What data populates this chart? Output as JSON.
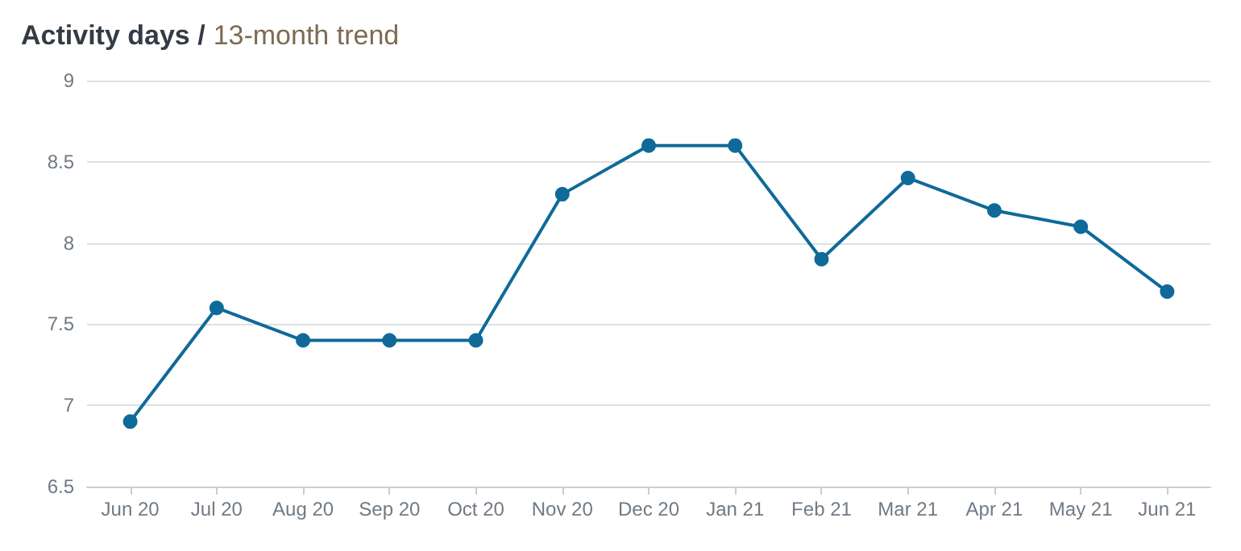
{
  "chart_data": {
    "type": "line",
    "title": "Activity days /",
    "subtitle": "13-month trend",
    "categories": [
      "Jun 20",
      "Jul 20",
      "Aug 20",
      "Sep 20",
      "Oct 20",
      "Nov 20",
      "Dec 20",
      "Jan 21",
      "Feb 21",
      "Mar 21",
      "Apr 21",
      "May 21",
      "Jun 21"
    ],
    "series": [
      {
        "color": "#0f6a99",
        "values": [
          6.9,
          7.6,
          7.4,
          7.4,
          7.4,
          8.3,
          8.6,
          8.6,
          7.9,
          8.4,
          8.2,
          8.1,
          7.7
        ]
      }
    ],
    "ylim": [
      6.5,
      9
    ],
    "yticks": [
      6.5,
      7,
      7.5,
      8,
      8.5,
      9
    ],
    "grid": "y",
    "marker": "circle",
    "line_style": "solid"
  }
}
